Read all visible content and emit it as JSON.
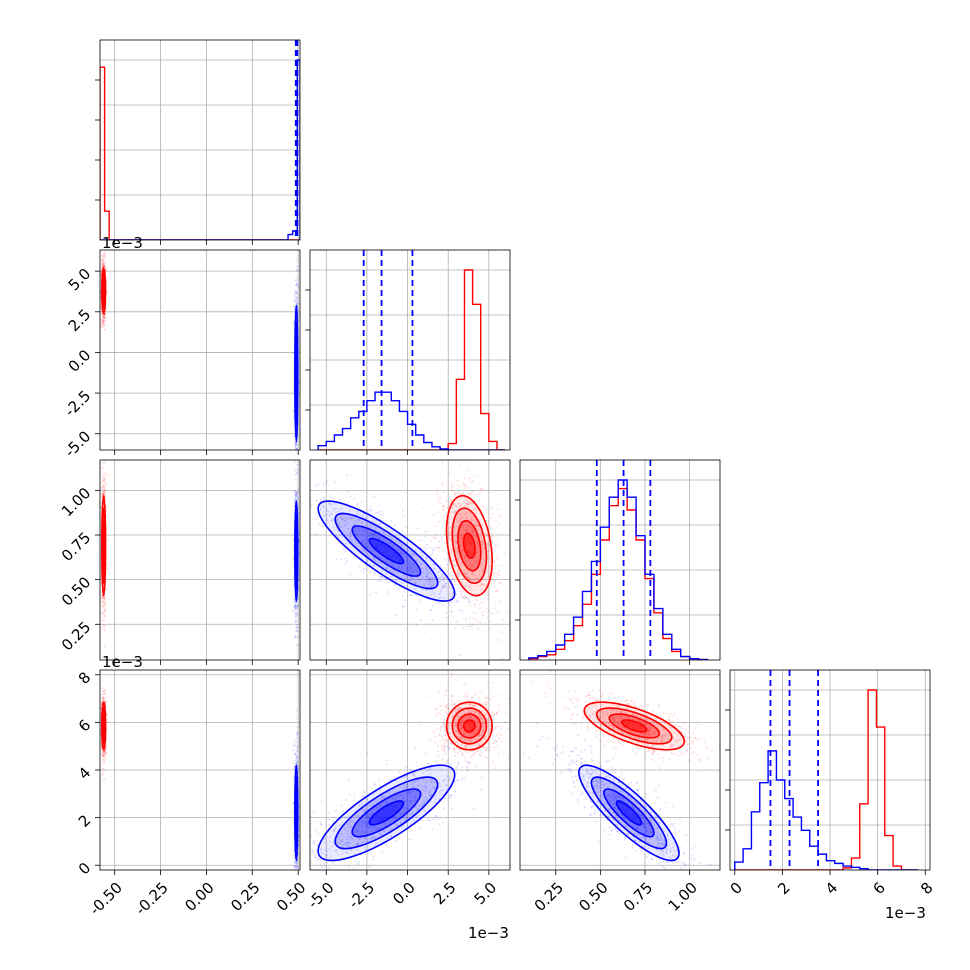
{
  "chart_data": {
    "type": "corner",
    "grid": true,
    "series": [
      {
        "color": "#ff0000"
      },
      {
        "color": "#0000ff"
      }
    ],
    "parameters": [
      {
        "ticks": [
          "-0.50",
          "-0.25",
          "0.00",
          "0.25",
          "0.50"
        ],
        "tick_values": [
          -0.5,
          -0.25,
          0.0,
          0.25,
          0.5
        ],
        "range": [
          -0.58,
          0.51
        ],
        "exponent": ""
      },
      {
        "ticks": [
          "-5.0",
          "-2.5",
          "0.0",
          "2.5",
          "5.0"
        ],
        "tick_values": [
          -5.0,
          -2.5,
          0.0,
          2.5,
          5.0
        ],
        "range": [
          -6.0,
          6.3
        ],
        "exponent": "1e−3"
      },
      {
        "ticks": [
          "0.25",
          "0.50",
          "0.75",
          "1.00"
        ],
        "tick_values": [
          0.25,
          0.5,
          0.75,
          1.0
        ],
        "range": [
          0.05,
          1.17
        ],
        "exponent": "1e−3"
      },
      {
        "ticks": [
          "0",
          "2",
          "4",
          "6",
          "8"
        ],
        "tick_values": [
          0,
          2,
          4,
          6,
          8
        ],
        "range": [
          -0.2,
          8.2
        ],
        "exponent": "1e−3"
      }
    ],
    "quantile_lines": {
      "color": "#0000ff",
      "p0": [
        0.487,
        0.491,
        0.496
      ],
      "p1": [
        -2.7,
        -1.6,
        0.3
      ],
      "p2": [
        0.48,
        0.63,
        0.78
      ],
      "p3": [
        1.5,
        2.3,
        3.5
      ]
    },
    "histograms": {
      "p0": {
        "bins": [
          -0.58,
          -0.555,
          -0.53,
          -0.505,
          -0.48,
          -0.455,
          -0.43,
          -0.405,
          -0.38,
          -0.355,
          -0.33,
          -0.305,
          -0.28,
          -0.255,
          -0.23,
          -0.205,
          -0.18,
          -0.155,
          -0.13,
          -0.105,
          -0.08,
          -0.055,
          -0.03,
          -0.005,
          0.02,
          0.045,
          0.07,
          0.095,
          0.12,
          0.145,
          0.17,
          0.195,
          0.22,
          0.245,
          0.27,
          0.295,
          0.32,
          0.345,
          0.37,
          0.395,
          0.42,
          0.445,
          0.47,
          0.495,
          0.51
        ],
        "red": [
          4.8,
          0.8,
          0,
          0,
          0,
          0,
          0,
          0,
          0,
          0,
          0,
          0,
          0,
          0,
          0,
          0,
          0,
          0,
          0,
          0,
          0,
          0,
          0,
          0,
          0,
          0,
          0,
          0,
          0,
          0,
          0,
          0,
          0,
          0,
          0,
          0,
          0,
          0,
          0,
          0,
          0,
          0,
          0,
          0
        ],
        "blue": [
          0,
          0,
          0,
          0,
          0,
          0,
          0,
          0,
          0,
          0,
          0,
          0,
          0,
          0,
          0,
          0,
          0,
          0,
          0,
          0,
          0,
          0,
          0,
          0,
          0,
          0,
          0,
          0,
          0,
          0,
          0,
          0,
          0,
          0,
          0,
          0,
          0,
          0,
          0,
          0,
          0,
          0.15,
          0.25,
          5.0
        ]
      },
      "p1": {
        "bins": [
          -5.5,
          -5.0,
          -4.5,
          -4.0,
          -3.5,
          -3.0,
          -2.5,
          -2.0,
          -1.5,
          -1.0,
          -0.5,
          0.0,
          0.5,
          1.0,
          1.5,
          2.0,
          2.5,
          3.0,
          3.5,
          4.0,
          4.5,
          5.0,
          5.5,
          6.0
        ],
        "red": [
          0,
          0,
          0,
          0,
          0,
          0,
          0,
          0,
          0,
          0,
          0,
          0,
          0,
          0,
          0,
          0,
          0.3,
          3.3,
          8.4,
          6.8,
          1.7,
          0.4,
          0
        ],
        "blue": [
          0.2,
          0.4,
          0.7,
          1.0,
          1.5,
          1.8,
          2.3,
          2.7,
          2.7,
          2.3,
          1.8,
          1.2,
          0.7,
          0.35,
          0.15,
          0.05,
          0,
          0,
          0,
          0,
          0,
          0,
          0
        ]
      },
      "p2": {
        "bins": [
          0.1,
          0.15,
          0.2,
          0.25,
          0.3,
          0.35,
          0.4,
          0.45,
          0.5,
          0.55,
          0.6,
          0.65,
          0.7,
          0.75,
          0.8,
          0.85,
          0.9,
          0.95,
          1.0,
          1.05,
          1.1
        ],
        "red": [
          0.03,
          0.08,
          0.12,
          0.25,
          0.45,
          0.8,
          1.3,
          2.0,
          2.8,
          3.6,
          4.0,
          3.5,
          2.8,
          1.9,
          1.1,
          0.5,
          0.2,
          0.08,
          0.03,
          0.01
        ],
        "blue": [
          0.05,
          0.1,
          0.2,
          0.35,
          0.6,
          1.0,
          1.6,
          2.3,
          3.1,
          3.8,
          4.2,
          3.8,
          2.9,
          2.0,
          1.2,
          0.6,
          0.25,
          0.08,
          0.03,
          0.01
        ]
      },
      "p3": {
        "bins": [
          0,
          0.35,
          0.7,
          1.05,
          1.4,
          1.75,
          2.1,
          2.45,
          2.8,
          3.15,
          3.5,
          3.85,
          4.2,
          4.55,
          4.9,
          5.25,
          5.6,
          5.95,
          6.3,
          6.65,
          7.0,
          7.35,
          7.7
        ],
        "red": [
          0,
          0,
          0,
          0,
          0,
          0,
          0,
          0,
          0,
          0,
          0,
          0,
          0,
          0.08,
          0.45,
          2.5,
          6.8,
          5.4,
          1.3,
          0.15,
          0,
          0
        ],
        "blue": [
          0.3,
          0.8,
          2.2,
          3.3,
          4.5,
          3.4,
          2.7,
          2.0,
          1.5,
          0.9,
          0.6,
          0.35,
          0.25,
          0.15,
          0.1,
          0.05,
          0,
          0,
          0,
          0,
          0,
          0
        ]
      }
    },
    "clusters": {
      "red": {
        "mean": [
          -0.56,
          3.8,
          0.69,
          5.85
        ],
        "std": [
          0.005,
          0.7,
          0.14,
          0.5
        ],
        "corr": {
          "1,2": -0.3,
          "1,3": 0.0,
          "2,3": -0.65
        }
      },
      "blue": {
        "mean": [
          0.49,
          -1.3,
          0.66,
          2.2
        ],
        "std": [
          0.004,
          2.1,
          0.14,
          1.0
        ],
        "corr": {
          "1,2": -0.85,
          "1,3": 0.8,
          "2,3": -0.85
        }
      }
    }
  }
}
